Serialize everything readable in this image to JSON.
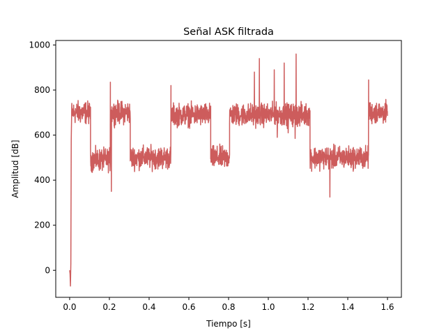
{
  "chart_data": {
    "type": "line",
    "title": "Señal ASK filtrada",
    "xlabel": "Tiempo [s]",
    "ylabel": "Amplitud [dB]",
    "xlim": [
      -0.07,
      1.67
    ],
    "ylim": [
      -120,
      1020
    ],
    "xticks": [
      0.0,
      0.2,
      0.4,
      0.6,
      0.8,
      1.0,
      1.2,
      1.4,
      1.6
    ],
    "xtick_labels": [
      "0.0",
      "0.2",
      "0.4",
      "0.6",
      "0.8",
      "1.0",
      "1.2",
      "1.4",
      "1.6"
    ],
    "yticks": [
      0,
      200,
      400,
      600,
      800,
      1000
    ],
    "ytick_labels": [
      "0",
      "200",
      "400",
      "600",
      "800",
      "1000"
    ],
    "grid": false,
    "color": "#cd5c5c",
    "series": [
      {
        "noise_amplitude": 60,
        "transient": {
          "x": [
            0.0,
            0.002,
            0.004,
            0.006,
            0.008,
            0.01
          ],
          "y": [
            0,
            -15,
            -70,
            30,
            580,
            690
          ]
        },
        "segments": [
          {
            "x_start": 0.01,
            "x_end": 0.105,
            "level": 700
          },
          {
            "x_start": 0.105,
            "x_end": 0.205,
            "level": 490
          },
          {
            "x_start": 0.205,
            "x_end": 0.305,
            "level": 700
          },
          {
            "x_start": 0.305,
            "x_end": 0.51,
            "level": 500
          },
          {
            "x_start": 0.51,
            "x_end": 0.71,
            "level": 690
          },
          {
            "x_start": 0.71,
            "x_end": 0.805,
            "level": 500
          },
          {
            "x_start": 0.805,
            "x_end": 1.21,
            "level": 690
          },
          {
            "x_start": 1.21,
            "x_end": 1.505,
            "level": 500
          },
          {
            "x_start": 1.505,
            "x_end": 1.6,
            "level": 700
          }
        ],
        "spikes": [
          {
            "x": 0.205,
            "y": 835
          },
          {
            "x": 0.21,
            "y": 350
          },
          {
            "x": 0.51,
            "y": 820
          },
          {
            "x": 0.93,
            "y": 880
          },
          {
            "x": 0.955,
            "y": 940
          },
          {
            "x": 1.03,
            "y": 890
          },
          {
            "x": 1.045,
            "y": 590
          },
          {
            "x": 1.08,
            "y": 920
          },
          {
            "x": 1.1,
            "y": 610
          },
          {
            "x": 1.14,
            "y": 960
          },
          {
            "x": 1.135,
            "y": 585
          },
          {
            "x": 1.31,
            "y": 325
          },
          {
            "x": 1.505,
            "y": 845
          }
        ]
      }
    ]
  }
}
